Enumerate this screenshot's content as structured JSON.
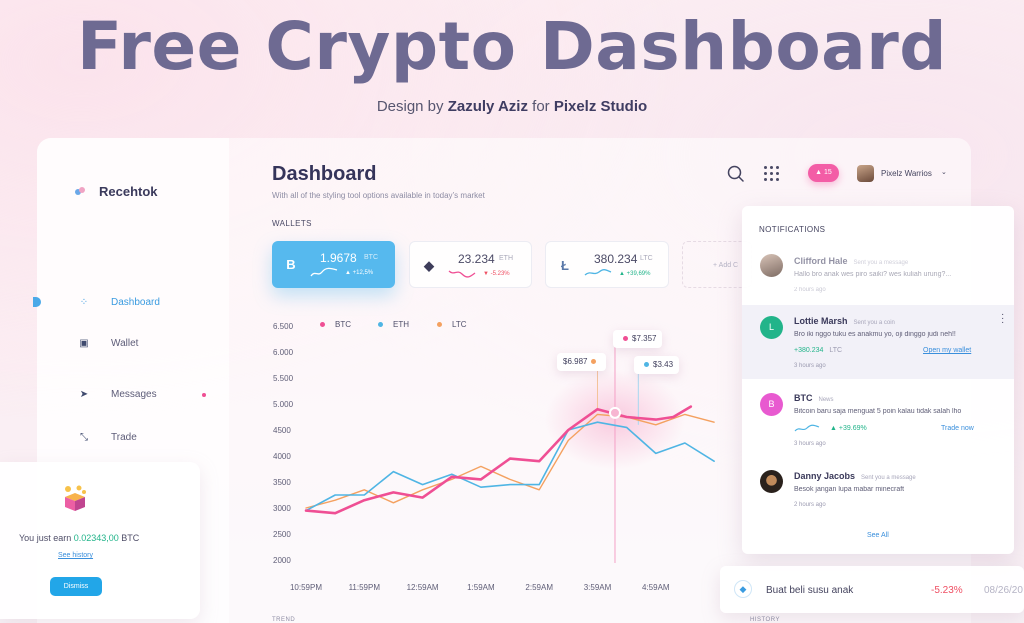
{
  "hero": {
    "title": "Free Crypto Dashboard",
    "sub_prefix": "Design by ",
    "author": "Zazuly Aziz",
    "sub_mid": " for ",
    "studio": "Pixelz Studio"
  },
  "sidebar": {
    "brand": "Recehtok",
    "items": [
      {
        "label": "Dashboard",
        "icon": "dashboard-icon",
        "glyph": "⁘"
      },
      {
        "label": "Wallet",
        "icon": "wallet-icon",
        "glyph": "▣"
      },
      {
        "label": "Messages",
        "icon": "send-icon",
        "glyph": "➤"
      },
      {
        "label": "Trade",
        "icon": "trade-arrows-icon",
        "glyph": "⤡"
      }
    ]
  },
  "earn": {
    "prefix": "You just earn ",
    "amount": "0.02343,00",
    "unit": " BTC",
    "link": "See history",
    "button": "Dismiss"
  },
  "header": {
    "title": "Dashboard",
    "subtitle": "With all of the styling tool options available in today’s market",
    "badge": "▲ 15",
    "user": "Pixelz Warrios"
  },
  "wallets": {
    "label": "WALLETS",
    "cards": [
      {
        "coin": "B",
        "value": "1.9678",
        "symbol": "BTC",
        "change": "▲ +12,5%"
      },
      {
        "coin": "◆",
        "value": "23.234",
        "symbol": "ETH",
        "change": "▼ -5.23%"
      },
      {
        "coin": "Ł",
        "value": "380.234",
        "symbol": "LTC",
        "change": "▲ +39,69%"
      }
    ],
    "add_label": "+ Add C"
  },
  "colors": {
    "btc": "#ef4f94",
    "eth": "#4fb5e4",
    "ltc": "#f4a160",
    "accent": "#4aa9e8",
    "positive": "#22b48a",
    "negative": "#ef4f63"
  },
  "chart_data": {
    "type": "line",
    "x": [
      "10:59PM",
      "11:59PM",
      "12:59AM",
      "1:59AM",
      "2:59AM",
      "3:59AM",
      "4:59AM"
    ],
    "y_ticks": [
      "6.500",
      "6.000",
      "5.500",
      "5.000",
      "4500",
      "4000",
      "3500",
      "3000",
      "2500",
      "2000"
    ],
    "legend": [
      "BTC",
      "ETH",
      "LTC"
    ],
    "ylim": [
      2000,
      6500
    ],
    "series": [
      {
        "name": "BTC",
        "color": "#ef4f94",
        "points": [
          [
            0,
            2950
          ],
          [
            0.5,
            2900
          ],
          [
            1,
            3150
          ],
          [
            1.5,
            3300
          ],
          [
            2,
            3200
          ],
          [
            2.5,
            3600
          ],
          [
            3,
            3550
          ],
          [
            3.5,
            3950
          ],
          [
            4,
            3900
          ],
          [
            4.5,
            4500
          ],
          [
            5,
            4900
          ],
          [
            5.5,
            4750
          ],
          [
            6,
            4700
          ],
          [
            6.3,
            4750
          ],
          [
            6.6,
            4950
          ]
        ]
      },
      {
        "name": "ETH",
        "color": "#4fb5e4",
        "points": [
          [
            0,
            2950
          ],
          [
            0.5,
            3250
          ],
          [
            1,
            3250
          ],
          [
            1.5,
            3700
          ],
          [
            2,
            3450
          ],
          [
            2.5,
            3650
          ],
          [
            3,
            3400
          ],
          [
            3.5,
            3450
          ],
          [
            4,
            3450
          ],
          [
            4.5,
            4500
          ],
          [
            5,
            4650
          ],
          [
            5.5,
            4550
          ],
          [
            6,
            4050
          ],
          [
            6.5,
            4250
          ],
          [
            7,
            3900
          ]
        ]
      },
      {
        "name": "LTC",
        "color": "#f4a160",
        "points": [
          [
            0,
            3000
          ],
          [
            0.5,
            3150
          ],
          [
            1,
            3350
          ],
          [
            1.5,
            3100
          ],
          [
            2,
            3350
          ],
          [
            2.5,
            3550
          ],
          [
            3,
            3800
          ],
          [
            3.5,
            3550
          ],
          [
            4,
            3350
          ],
          [
            4.5,
            4300
          ],
          [
            5,
            4800
          ],
          [
            5.5,
            4750
          ],
          [
            6,
            4600
          ],
          [
            6.5,
            4800
          ],
          [
            7,
            4650
          ]
        ]
      }
    ],
    "tooltips": [
      {
        "label": "$6.987",
        "color": "#f4a160"
      },
      {
        "label": "$7.357",
        "color": "#ef4f94"
      },
      {
        "label": "$3.43",
        "color": "#4fb5e4"
      }
    ]
  },
  "notifications": {
    "title": "NOTIFICATIONS",
    "items": [
      {
        "name": "Clifford Hale",
        "type": "Sent you a message",
        "msg": "Hallo bro anak wes piro saiki? wes kuliah urung?...",
        "time": "2 hours ago"
      },
      {
        "name": "Lottie Marsh",
        "type": "Sent you a coin",
        "initial": "L",
        "msg": "Bro iki nggo tuku es anakmu yo, oji dinggo judi neh!!",
        "amount": "+380.234",
        "amount_unit": "LTC",
        "link": "Open my wallet",
        "time": "3 hours ago"
      },
      {
        "name": "BTC",
        "type": "News",
        "initial": "B",
        "msg": "Bitcoin baru saja menguat 5 poin kalau tidak salah lho",
        "change": "▲ +39.69%",
        "link": "Trade now",
        "time": "3 hours ago"
      },
      {
        "name": "Danny Jacobs",
        "type": "Sent you a message",
        "msg": "Besok jangan lupa mabar minecraft",
        "time": "2 hours ago"
      }
    ],
    "see_all": "See All"
  },
  "toast": {
    "icon": "◆",
    "text": "Buat beli susu anak",
    "change": "-5.23%",
    "date": "08/26/20"
  },
  "footer_cut": {
    "left": "TREND",
    "right": "HISTORY"
  }
}
